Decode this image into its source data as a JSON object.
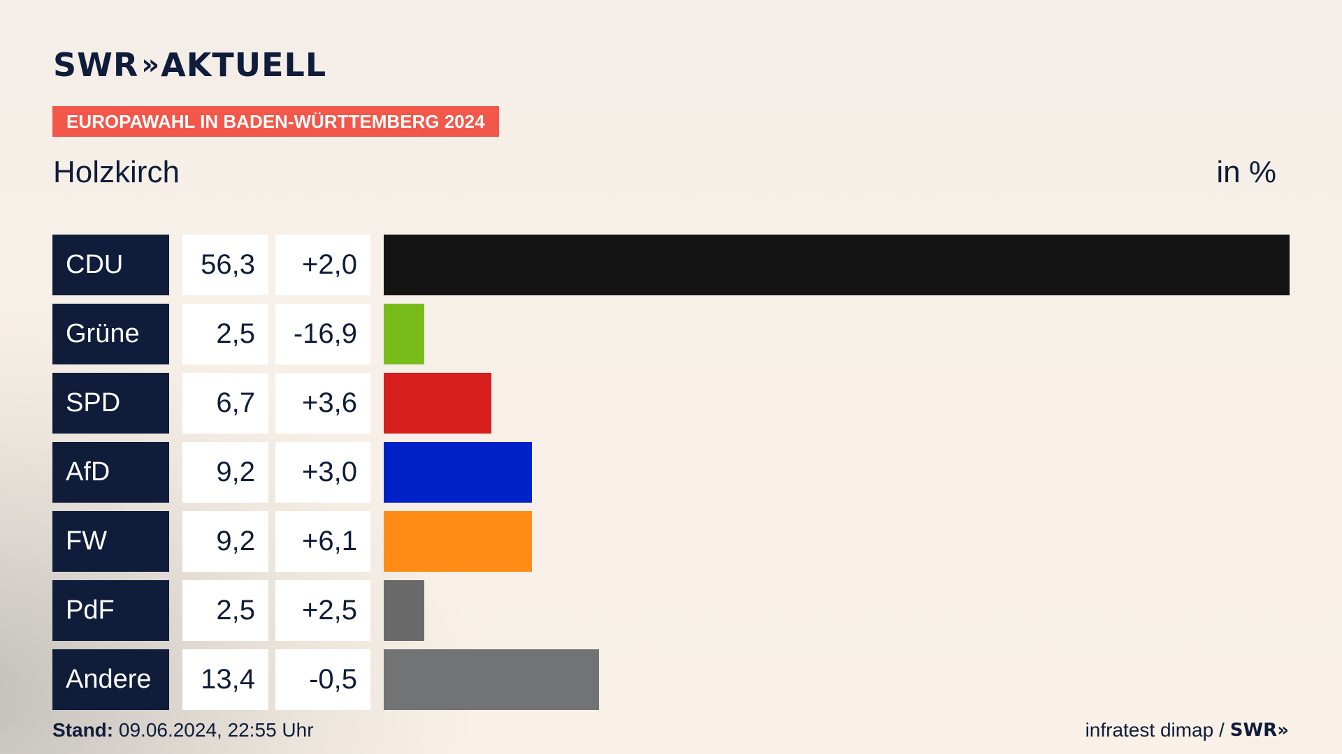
{
  "header": {
    "brand_swr": "SWR",
    "brand_chevrons": "»",
    "brand_name": "AKTUELL",
    "badge": "EUROPAWAHL IN BADEN-WÜRTTEMBERG 2024",
    "location": "Holzkirch",
    "unit": "in %"
  },
  "footer": {
    "stand_label": "Stand:",
    "stand_value": "09.06.2024, 22:55 Uhr",
    "source": "infratest dimap /",
    "source_logo": "SWR»"
  },
  "chart_data": {
    "type": "bar",
    "orientation": "horizontal",
    "categories": [
      "CDU",
      "Grüne",
      "SPD",
      "AfD",
      "FW",
      "PdF",
      "Andere"
    ],
    "values": [
      56.3,
      2.5,
      6.7,
      9.2,
      9.2,
      2.5,
      13.4
    ],
    "value_labels": [
      "56,3",
      "2,5",
      "6,7",
      "9,2",
      "9,2",
      "2,5",
      "13,4"
    ],
    "change_labels": [
      "+2,0",
      "-16,9",
      "+3,6",
      "+3,0",
      "+6,1",
      "+2,5",
      "-0,5"
    ],
    "colors": [
      "#141414",
      "#78bc1b",
      "#d71f1d",
      "#0021c8",
      "#ff8c17",
      "#6a6a6a",
      "#727374"
    ],
    "xlim": [
      0,
      56.3
    ]
  }
}
